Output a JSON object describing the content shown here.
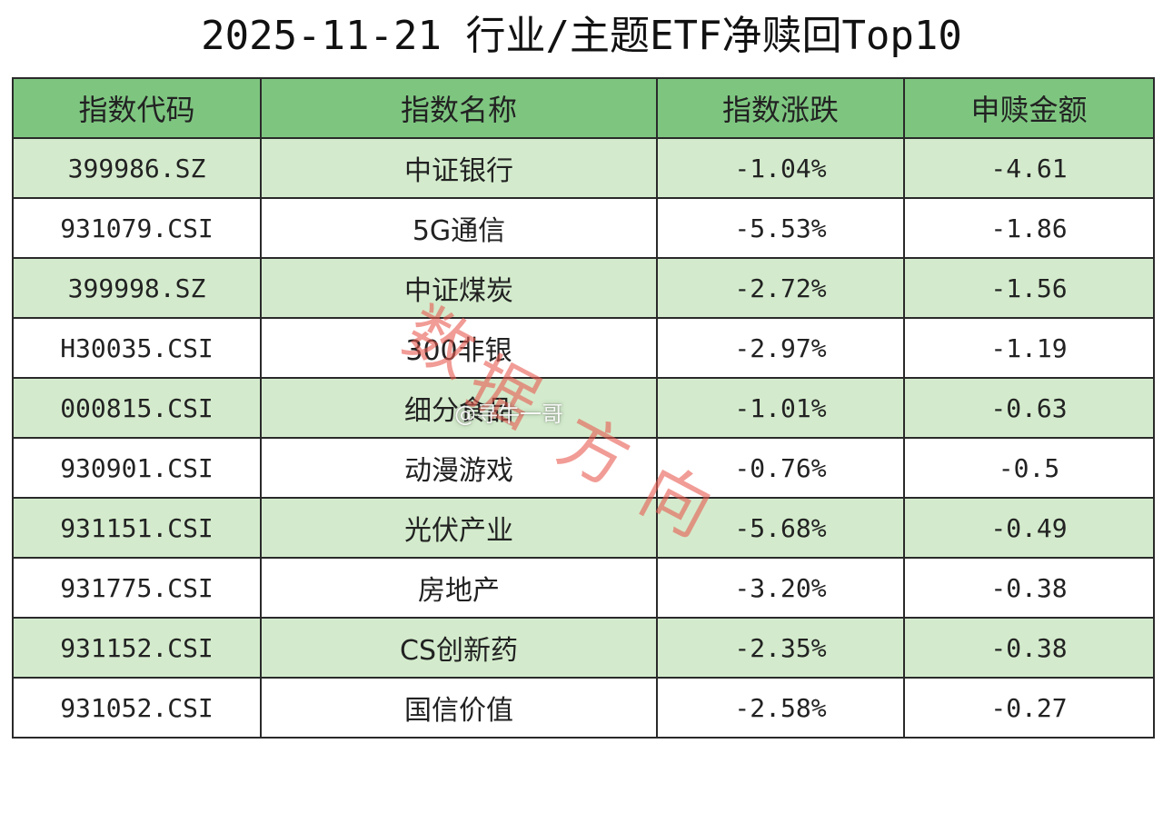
{
  "title": "2025-11-21 行业/主题ETF净赎回Top10",
  "colors": {
    "header_bg": "#7ec680",
    "row_odd_bg": "#d3ebcc",
    "row_even_bg": "#ffffff",
    "border": "#2a2a2a",
    "watermark": "#e85a50"
  },
  "watermarks": {
    "weibo": "@寻牛一哥",
    "stamp": "数据方向"
  },
  "chart_data": {
    "type": "table",
    "title": "2025-11-21 行业/主题ETF净赎回Top10",
    "columns": [
      "指数代码",
      "指数名称",
      "指数涨跌",
      "申赎金额"
    ],
    "rows": [
      [
        "399986.SZ",
        "中证银行",
        "-1.04%",
        "-4.61"
      ],
      [
        "931079.CSI",
        "5G通信",
        "-5.53%",
        "-1.86"
      ],
      [
        "399998.SZ",
        "中证煤炭",
        "-2.72%",
        "-1.56"
      ],
      [
        "H30035.CSI",
        "300非银",
        "-2.97%",
        "-1.19"
      ],
      [
        "000815.CSI",
        "细分食品",
        "-1.01%",
        "-0.63"
      ],
      [
        "930901.CSI",
        "动漫游戏",
        "-0.76%",
        "-0.5"
      ],
      [
        "931151.CSI",
        "光伏产业",
        "-5.68%",
        "-0.49"
      ],
      [
        "931775.CSI",
        "房地产",
        "-3.20%",
        "-0.38"
      ],
      [
        "931152.CSI",
        "CS创新药",
        "-2.35%",
        "-0.38"
      ],
      [
        "931052.CSI",
        "国信价值",
        "-2.58%",
        "-0.27"
      ]
    ]
  }
}
